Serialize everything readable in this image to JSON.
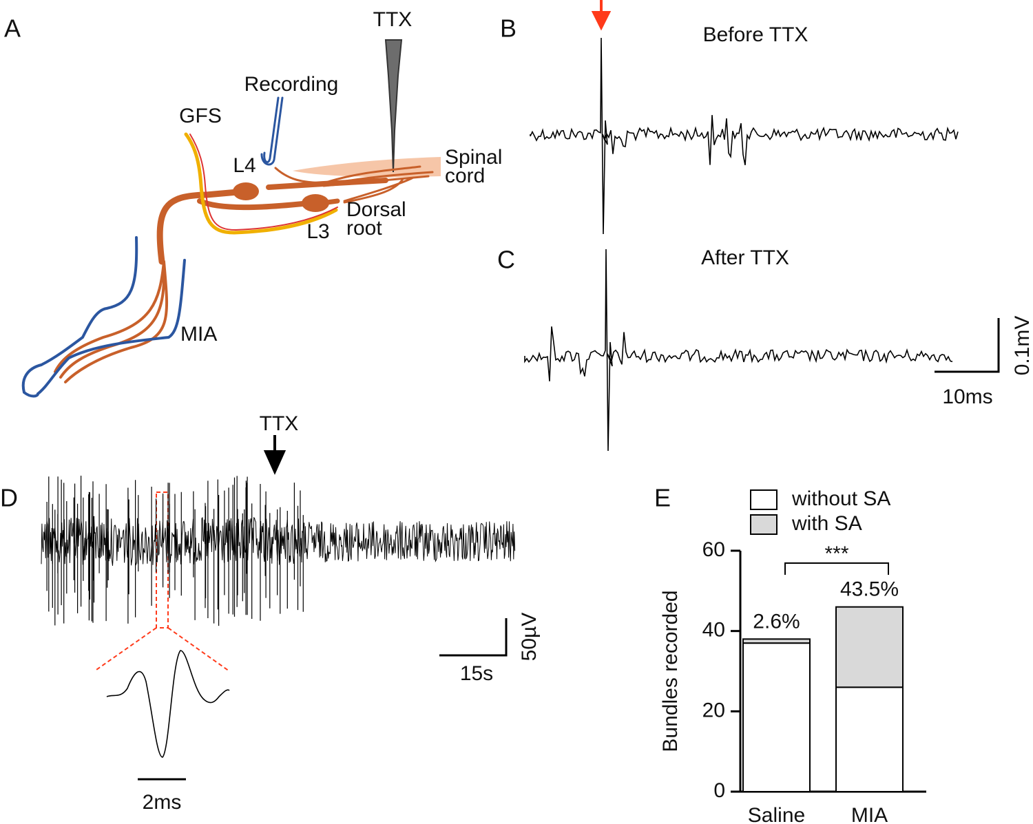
{
  "figure": {
    "panel_a": {
      "letter": "A",
      "ttx": "TTX",
      "recording": "Recording",
      "gfs": "GFS",
      "l4": "L4",
      "spinal": [
        "Spinal",
        "cord"
      ],
      "dorsal": [
        "Dorsal",
        "root"
      ],
      "l3": "L3",
      "mia": "MIA"
    },
    "panel_b": {
      "letter": "B",
      "title": "Before TTX"
    },
    "panel_c": {
      "letter": "C",
      "title": "After TTX",
      "scale_y": "0.1mV",
      "scale_x": "10ms"
    },
    "panel_d": {
      "letter": "D",
      "ttx": "TTX",
      "scale_y": "50µV",
      "scale_x": "15s",
      "inset_scale": "2ms"
    },
    "panel_e": {
      "letter": "E"
    }
  },
  "chart_data": {
    "type": "stacked-bar",
    "ylabel": "Bundles recorded",
    "categories": [
      "Saline",
      "MIA"
    ],
    "series": [
      {
        "name": "without SA",
        "color": "#ffffff",
        "values": [
          37,
          26
        ]
      },
      {
        "name": "with SA",
        "color": "#d9d9d9",
        "values": [
          1,
          20
        ]
      }
    ],
    "annotations": [
      "2.6%",
      "43.5%",
      "***"
    ],
    "ylim": [
      0,
      60
    ],
    "yticks": [
      0,
      20,
      40,
      60
    ]
  }
}
